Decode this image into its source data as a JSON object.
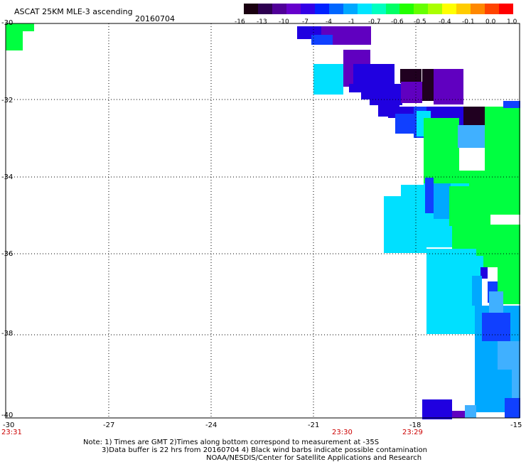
{
  "header": {
    "title": "ASCAT 25KM MLE-3 ascending",
    "date": "20160704"
  },
  "colorbar": {
    "ticks": [
      "-16",
      "-13",
      "-10",
      "-7",
      "-4",
      "-1",
      "-0.7",
      "-0.6",
      "-0.5",
      "-0.4",
      "-0.1",
      "0.0",
      "1.0"
    ],
    "colors": [
      "#1a0010",
      "#2d0050",
      "#500098",
      "#6600cc",
      "#3300e6",
      "#0022ff",
      "#0066ff",
      "#00a8ff",
      "#00e5ff",
      "#00ffc0",
      "#00ff66",
      "#22ff00",
      "#66ff00",
      "#aaff00",
      "#ffff00",
      "#ffcc00",
      "#ff8800",
      "#ff4400",
      "#ff0000"
    ]
  },
  "axes": {
    "lat_labels": [
      "-30",
      "-32",
      "-34",
      "-36",
      "-38",
      "-40"
    ],
    "lon_labels": [
      "-30",
      "-27",
      "-24",
      "-21",
      "-18",
      "-15"
    ]
  },
  "times": {
    "labels": [
      "23:31",
      "23:30",
      "23:29"
    ],
    "color": "#cc0000"
  },
  "notes": {
    "line1": "Note: 1) Times are GMT 2)Times along bottom correspond to measurement at -35S",
    "line2": "3)Data buffer is 22 hrs from 20160704 4) Black wind barbs indicate possible contamination",
    "line3": "NOAA/NESDIS/Center for Satellite Applications and Research"
  },
  "palette": {
    "cyan": "#00e0ff",
    "green": "#00ff40",
    "blue": "#1040ff",
    "navy": "#2000e0",
    "purple": "#6000c0",
    "dark": "#200020",
    "sky": "#00a8ff",
    "lightblue": "#40b0ff"
  }
}
